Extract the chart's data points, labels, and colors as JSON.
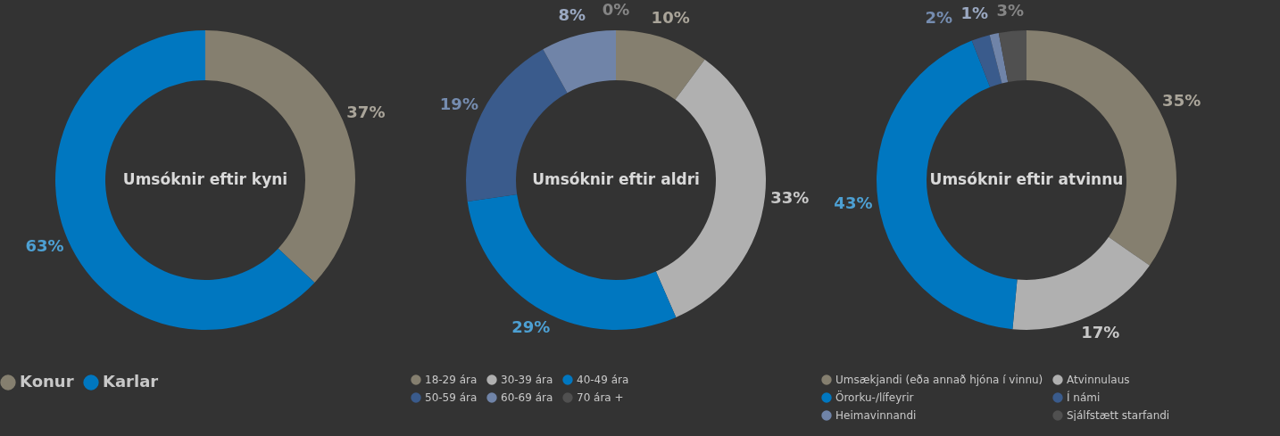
{
  "chart_data": [
    {
      "type": "donut",
      "title": "Umsóknir eftir kyni",
      "categories": [
        "Konur",
        "Karlar"
      ],
      "values": [
        37,
        63
      ],
      "colors": [
        "#857f6f",
        "#0077c0"
      ],
      "value_labels": [
        "37%",
        "63%"
      ],
      "legend": "bottom"
    },
    {
      "type": "donut",
      "title": "Umsóknir eftir aldri",
      "categories": [
        "18-29 ára",
        "30-39 ára",
        "40-49 ára",
        "50-59 ára",
        "60-69 ára",
        "70 ára +"
      ],
      "values": [
        10,
        33,
        29,
        19,
        8,
        0
      ],
      "colors": [
        "#857f6f",
        "#b0b0b0",
        "#0077c0",
        "#3a5b8c",
        "#7084a8",
        "#505050"
      ],
      "value_labels": [
        "10%",
        "33%",
        "29%",
        "19%",
        "8%",
        "0%"
      ],
      "legend": "bottom"
    },
    {
      "type": "donut",
      "title": "Umsóknir eftir atvinnu",
      "categories": [
        "Umsækjandi (eða annað hjóna í vinnu)",
        "Atvinnulaus",
        "Örorku-/lífeyrir",
        "Í námi",
        "Heimavinnandi",
        "Sjálfstætt starfandi"
      ],
      "values": [
        35,
        17,
        43,
        2,
        1,
        3
      ],
      "colors": [
        "#857f6f",
        "#b0b0b0",
        "#0077c0",
        "#3a5b8c",
        "#7084a8",
        "#505050"
      ],
      "value_labels": [
        "35%",
        "17%",
        "43%",
        "2%",
        "1%",
        "3%"
      ],
      "legend": "bottom"
    }
  ]
}
